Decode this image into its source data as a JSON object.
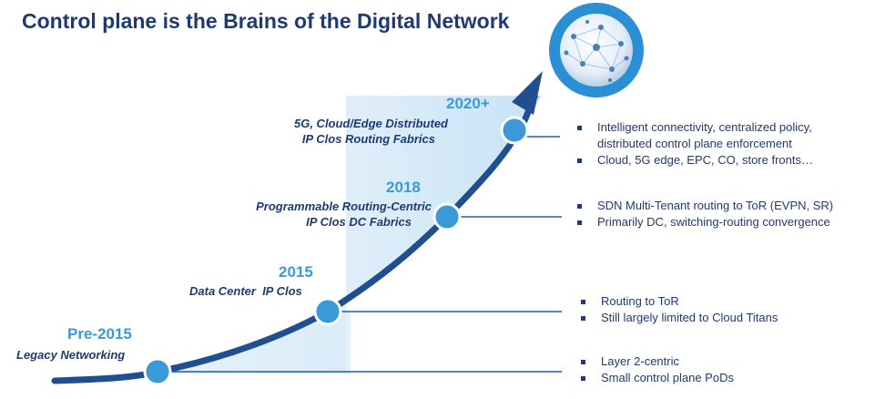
{
  "title": "Control plane is the Brains of the Digital Network",
  "colors": {
    "title": "#1f3a73",
    "year": "#3a9ad9",
    "curve": "#1f5fa6",
    "node": "#3a9ad9",
    "shade": "#cfe6f7"
  },
  "milestones": [
    {
      "year": "Pre-2015",
      "lines": [
        "Legacy Networking"
      ],
      "bullets": [
        "Layer 2-centric",
        "Small control plane PoDs"
      ]
    },
    {
      "year": "2015",
      "lines": [
        "Data Center  IP Clos"
      ],
      "bullets": [
        "Routing to ToR",
        "Still largely limited to Cloud Titans"
      ]
    },
    {
      "year": "2018",
      "lines": [
        "Programmable Routing-Centric",
        "IP Clos DC Fabrics"
      ],
      "bullets": [
        "SDN Multi-Tenant routing to ToR (EVPN, SR)",
        "Primarily DC, switching-routing convergence"
      ]
    },
    {
      "year": "2020+",
      "lines": [
        "5G, Cloud/Edge Distributed",
        "IP Clos Routing Fabrics"
      ],
      "bullets": [
        "Intelligent connectivity, centralized policy,",
        "distributed control plane enforcement",
        "Cloud, 5G edge, EPC, CO, store fronts…"
      ]
    }
  ],
  "globe_icon": "network-globe-icon"
}
